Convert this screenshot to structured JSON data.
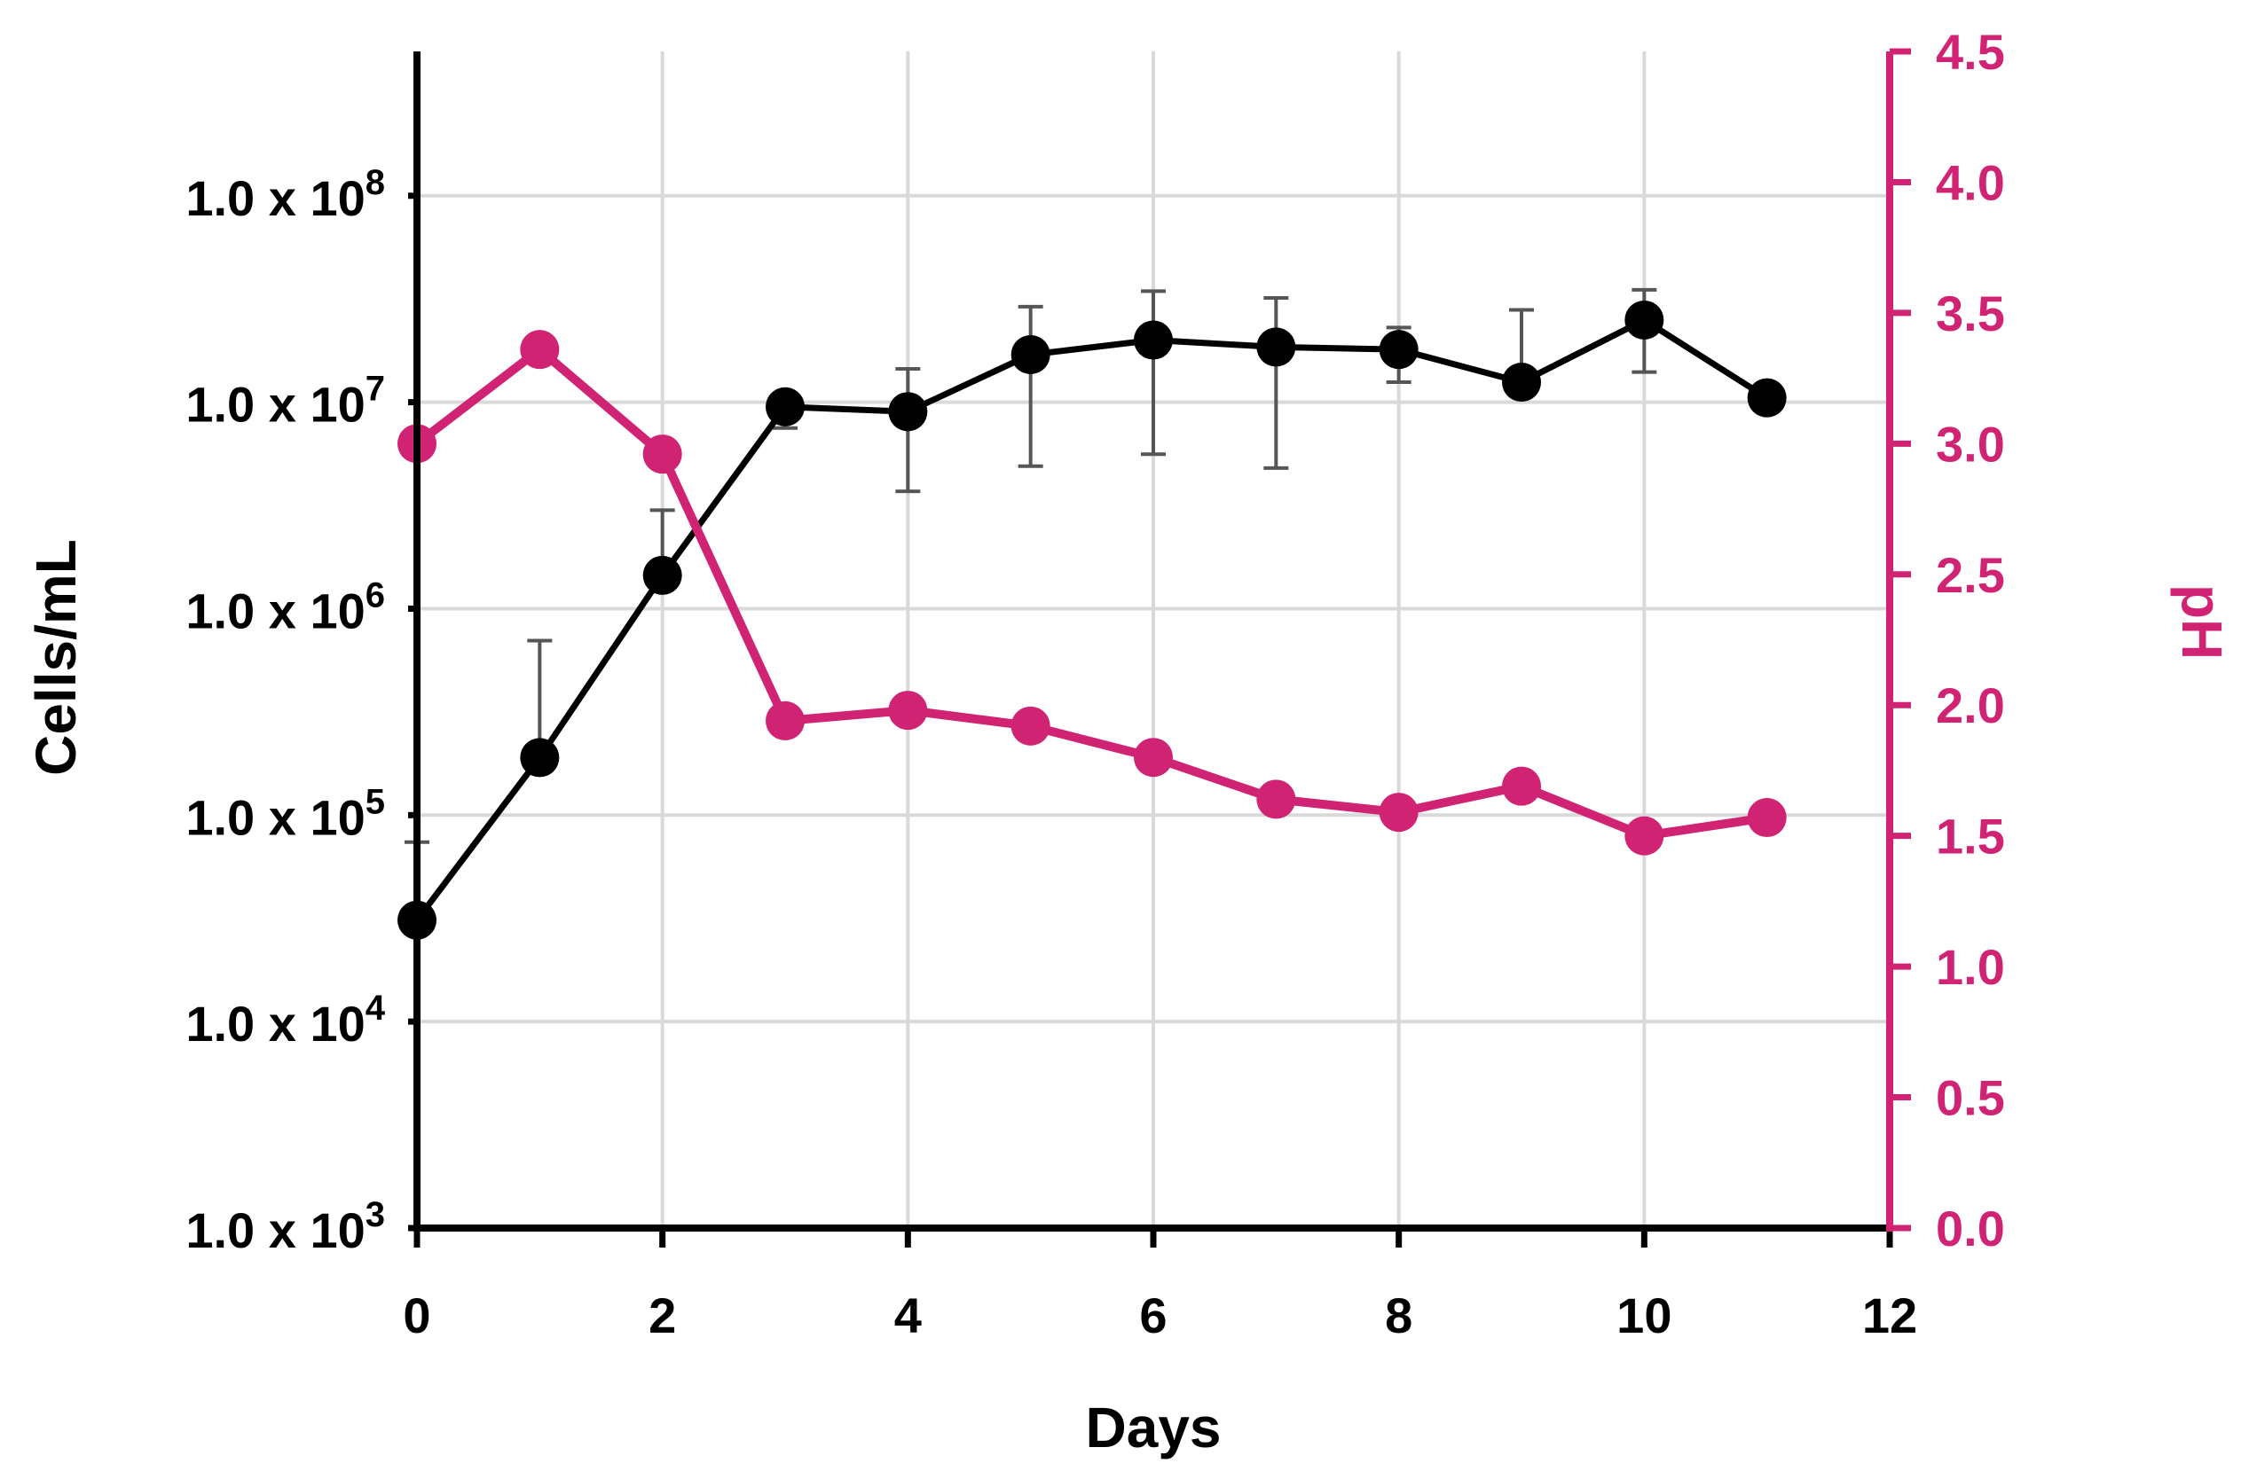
{
  "chart_data": {
    "type": "line",
    "xlabel": "Days",
    "ylabel_left": "Cells/mL",
    "ylabel_right": "pH",
    "x_ticks": [
      "0",
      "2",
      "4",
      "6",
      "8",
      "10",
      "12"
    ],
    "xlim": [
      0,
      12
    ],
    "y_left_scale": "log",
    "y_left_lim": [
      1000,
      500000000
    ],
    "y_left_ticks": [
      {
        "value": 1000,
        "mantissa": "1.0 x 10",
        "exp": "3"
      },
      {
        "value": 10000,
        "mantissa": "1.0 x 10",
        "exp": "4"
      },
      {
        "value": 100000,
        "mantissa": "1.0 x 10",
        "exp": "5"
      },
      {
        "value": 1000000,
        "mantissa": "1.0 x 10",
        "exp": "6"
      },
      {
        "value": 10000000,
        "mantissa": "1.0 x 10",
        "exp": "7"
      },
      {
        "value": 100000000,
        "mantissa": "1.0 x 10",
        "exp": "8"
      }
    ],
    "y_right_lim": [
      0,
      4.5
    ],
    "y_right_ticks": [
      "0.0",
      "0.5",
      "1.0",
      "1.5",
      "2.0",
      "2.5",
      "3.0",
      "3.5",
      "4.0",
      "4.5"
    ],
    "grid": true,
    "series": [
      {
        "axis": "left",
        "color": "#000000",
        "x": [
          0,
          1,
          2,
          3,
          4,
          5,
          6,
          7,
          8,
          9,
          10,
          11
        ],
        "y": [
          31000,
          190000,
          1450000,
          9500000,
          9000000,
          17000000,
          20000000,
          18500000,
          18000000,
          12500000,
          25000000,
          10500000
        ],
        "err_low": [
          31000,
          190000,
          1450000,
          7500000,
          3700000,
          4900000,
          5600000,
          4800000,
          12500000,
          12500000,
          14000000,
          null
        ],
        "err_high": [
          74000,
          700000,
          3000000,
          9500000,
          14500000,
          29000000,
          34500000,
          32000000,
          23000000,
          28000000,
          35000000,
          null
        ]
      },
      {
        "axis": "right",
        "color": "#d02373",
        "x": [
          0,
          1,
          2,
          3,
          4,
          5,
          6,
          7,
          8,
          9,
          10,
          11
        ],
        "y": [
          3.0,
          3.36,
          2.96,
          1.94,
          1.98,
          1.92,
          1.8,
          1.64,
          1.59,
          1.69,
          1.5,
          1.57
        ]
      }
    ]
  }
}
